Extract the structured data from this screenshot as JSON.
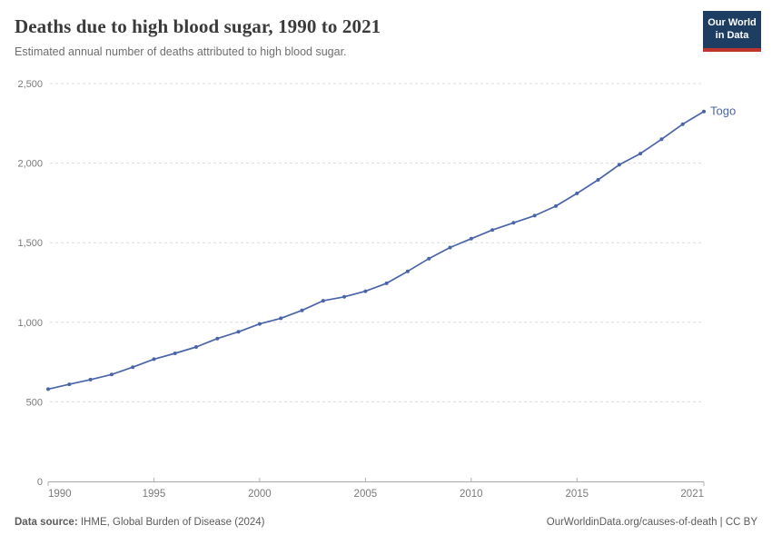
{
  "header": {
    "title": "Deaths due to high blood sugar, 1990 to 2021",
    "subtitle": "Estimated annual number of deaths attributed to high blood sugar.",
    "logo": {
      "line1": "Our World",
      "line2": "in Data"
    }
  },
  "chart_data": {
    "type": "line",
    "title": "Deaths due to high blood sugar, 1990 to 2021",
    "subtitle": "Estimated annual number of deaths attributed to high blood sugar.",
    "xlabel": "",
    "ylabel": "",
    "xlim": [
      1990,
      2021
    ],
    "ylim": [
      0,
      2500
    ],
    "x_ticks": [
      1990,
      1995,
      2000,
      2005,
      2010,
      2015,
      2021
    ],
    "y_ticks": [
      0,
      500,
      1000,
      1500,
      2000,
      2500
    ],
    "grid": "horizontal-dashed",
    "legend_position": "end-of-line-label",
    "series": [
      {
        "name": "Togo",
        "color": "#4a64a8",
        "x": [
          1990,
          1991,
          1992,
          1993,
          1994,
          1995,
          1996,
          1997,
          1998,
          1999,
          2000,
          2001,
          2002,
          2003,
          2004,
          2005,
          2006,
          2007,
          2008,
          2009,
          2010,
          2011,
          2012,
          2013,
          2014,
          2015,
          2016,
          2017,
          2018,
          2019,
          2020,
          2021
        ],
        "values": [
          580,
          610,
          640,
          672,
          718,
          768,
          805,
          845,
          898,
          940,
          990,
          1025,
          1075,
          1135,
          1160,
          1195,
          1245,
          1320,
          1400,
          1470,
          1525,
          1580,
          1625,
          1670,
          1730,
          1810,
          1895,
          1990,
          2060,
          2150,
          2245,
          2325
        ]
      }
    ]
  },
  "footer": {
    "source_label": "Data source:",
    "source_text": " IHME, Global Burden of Disease (2024)",
    "link": "OurWorldinData.org/causes-of-death | CC BY"
  },
  "colors": {
    "line": "#4a64a8",
    "grid": "#dcdcdc",
    "axis": "#a8a8a8",
    "tick": "#b0b0b0",
    "axis_label": "#7a7a7a",
    "logo_bg": "#1d3d63",
    "logo_accent": "#bd352c"
  }
}
